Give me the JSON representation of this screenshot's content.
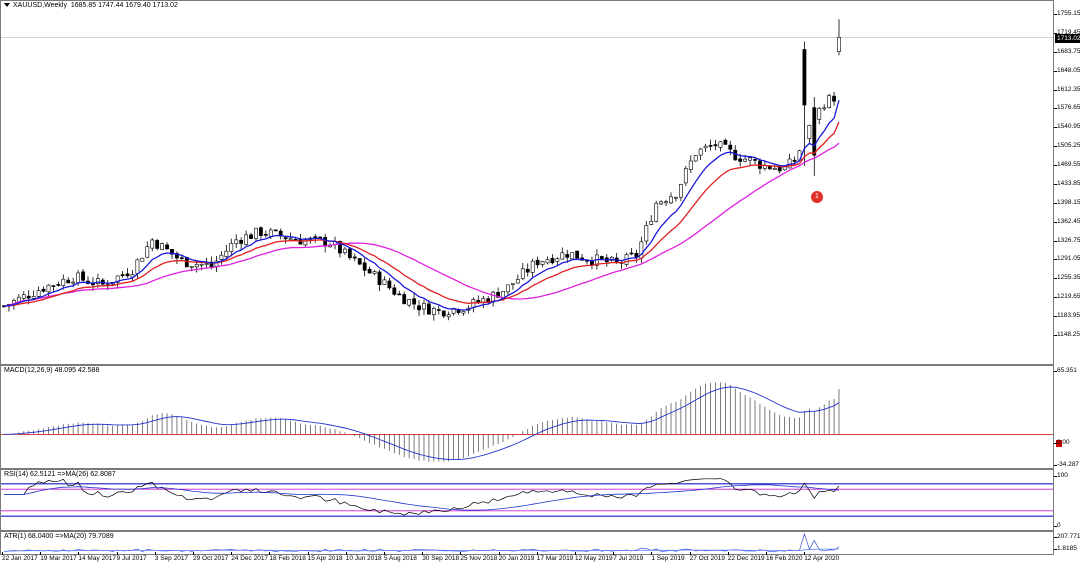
{
  "main": {
    "label": "XAUUSD,Weekly",
    "ohlc": "1685.85 1747.44 1679.40 1713.02",
    "price_levels": [
      "1755.15",
      "1719.45",
      "1683.75",
      "1648.05",
      "1612.35",
      "1576.65",
      "1540.95",
      "1505.25",
      "1469.55",
      "1433.85",
      "1398.15",
      "1362.45",
      "1326.75",
      "1291.05",
      "1255.35",
      "1219.65",
      "1183.95",
      "1148.25"
    ],
    "current_price": "1713.02",
    "marker_text": "1",
    "colors": {
      "ma_fast": "#1a1adb",
      "ma_mid": "#e01f1f",
      "ma_slow": "#e020e0",
      "candle": "#000000"
    }
  },
  "macd": {
    "label": "MACD(12,26,9) 48.095 42.588",
    "levels": [
      "65.351",
      "0.00",
      "-34.287"
    ]
  },
  "rsi": {
    "label": "RSI(14) 62.5121  =>MA(26) 62.8087",
    "levels": [
      "100",
      "0"
    ]
  },
  "atr": {
    "label": "ATR(1) 68.0400  =>MA(20) 79.7089",
    "levels": [
      "207.7715",
      "1.8185"
    ]
  },
  "xaxis": [
    "22 Jan 2017",
    "19 Mar 2017",
    "14 May 2017",
    "9 Jul 2017",
    "3 Sep 2017",
    "29 Oct 2017",
    "24 Dec 2017",
    "18 Feb 2018",
    "15 Apr 2018",
    "10 Jun 2018",
    "5 Aug 2018",
    "30 Sep 2018",
    "25 Nov 2018",
    "20 Jan 2019",
    "17 Mar 2019",
    "12 May 2019",
    "7 Jul 2019",
    "1 Sep 2019",
    "27 Oct 2019",
    "22 Dec 2019",
    "16 Feb 2020",
    "12 Apr 2020"
  ]
}
